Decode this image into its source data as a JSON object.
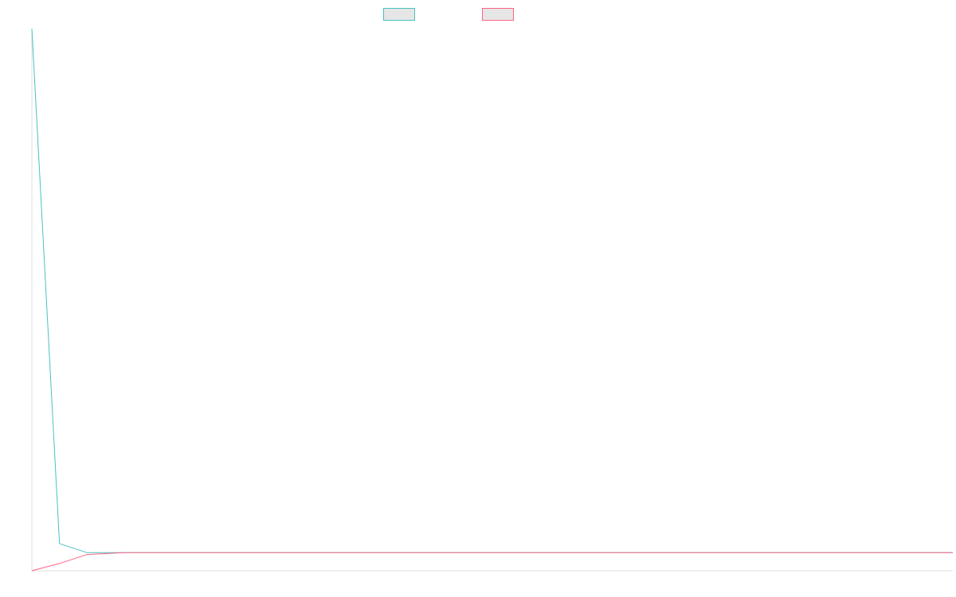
{
  "chart_data": {
    "type": "line",
    "title": "",
    "xlabel": "",
    "ylabel": "",
    "grid": false,
    "legend": "top-center",
    "x": [
      0,
      0.03,
      0.06,
      0.1,
      1
    ],
    "xlim": [
      0,
      1
    ],
    "ylim": [
      0,
      30
    ],
    "series": [
      {
        "name": "",
        "color": "#4bc0c0",
        "values": [
          30,
          1.5,
          1,
          1,
          1
        ]
      },
      {
        "name": "",
        "color": "#ff6384",
        "values": [
          0,
          0.4,
          0.9,
          1,
          1
        ]
      }
    ]
  }
}
